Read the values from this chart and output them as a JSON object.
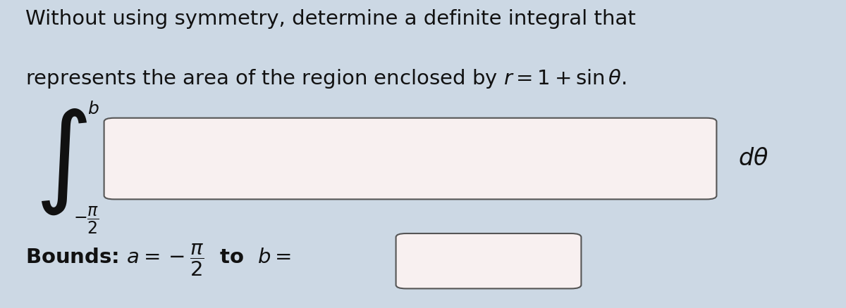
{
  "bg_color": "#ccd8e4",
  "box_facecolor": "#f8f0f0",
  "box_edgecolor": "#555555",
  "text_color": "#111111",
  "title1": "Without using symmetry, determine a definite integral that",
  "title2": "represents the area of the region enclosed by $r = 1 + \\sin\\theta$.",
  "title_fontsize": 21,
  "integral_fontsize": 80,
  "bound_upper_fontsize": 18,
  "bound_lower_fontsize": 17,
  "dtheta_fontsize": 24,
  "bounds_fontsize": 21,
  "fig_width": 12.0,
  "fig_height": 4.38
}
